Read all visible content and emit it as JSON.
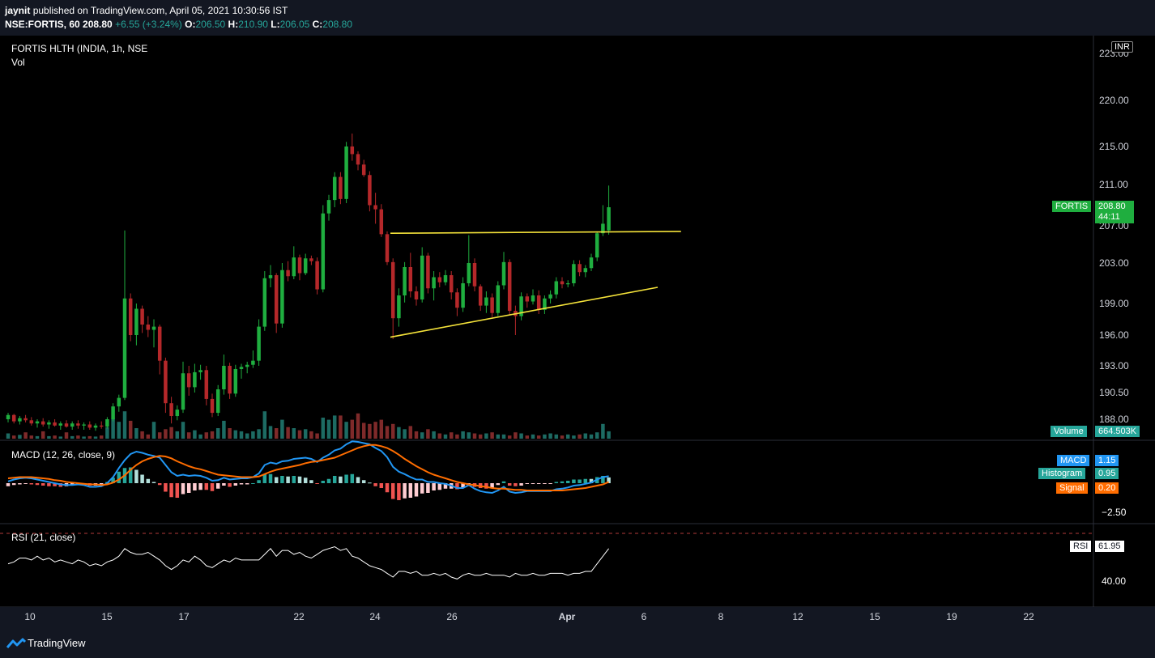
{
  "header": {
    "author": "jaynit",
    "published_text": "published on TradingView.com, April 05, 2021 10:30:56 IST",
    "symbol": "NSE:FORTIS, 60",
    "last": "208.80",
    "change": "+6.55 (+3.24%)",
    "o_label": "O:",
    "o": "206.50",
    "h_label": "H:",
    "h": "210.90",
    "l_label": "L:",
    "l": "206.05",
    "c_label": "C:",
    "c": "208.80"
  },
  "legend": {
    "title": "FORTIS HLTH (INDIA, 1h, NSE",
    "vol": "Vol"
  },
  "currency": "INR",
  "price_tag": {
    "name": "FORTIS",
    "price": "208.80",
    "countdown": "44:11"
  },
  "volume_tag": {
    "label": "Volume",
    "value": "664.503K"
  },
  "macd_panel": {
    "title": "MACD (12, 26, close, 9)",
    "macd_label": "MACD",
    "macd_value": "1.15",
    "hist_label": "Histogram",
    "hist_value": "0.95",
    "signal_label": "Signal",
    "signal_value": "0.20",
    "axis_label": "−2.50"
  },
  "rsi_panel": {
    "title": "RSI (21, close)",
    "rsi_label": "RSI",
    "rsi_value": "61.95",
    "axis_label": "40.00"
  },
  "footer": {
    "brand": "TradingView"
  },
  "colors": {
    "up": "#26a69a",
    "down": "#ef5350",
    "candle_up": "#1fae3f",
    "candle_down": "#b5282a",
    "trendline": "#f5e33a",
    "macd": "#2196f3",
    "signal": "#ff6d00",
    "rsi": "#ffffff"
  },
  "chart_data": {
    "type": "candlestick",
    "y_ticks": [
      "223.00",
      "220.00",
      "215.00",
      "211.00",
      "207.00",
      "203.00",
      "199.00",
      "196.00",
      "193.00",
      "190.50",
      "188.00"
    ],
    "y_values": [
      223.0,
      220.0,
      215.0,
      211.0,
      207.0,
      203.0,
      199.0,
      196.0,
      193.0,
      190.5,
      188.0
    ],
    "x_ticks": [
      "10",
      "15",
      "17",
      "22",
      "24",
      "26",
      "Apr",
      "6",
      "8",
      "12",
      "15",
      "19",
      "22"
    ],
    "last_price": 208.8,
    "series": [
      {
        "name": "FORTIS",
        "kind": "ohlc",
        "bars": [
          [
            188.0,
            188.6,
            187.7,
            188.4
          ],
          [
            188.4,
            188.5,
            187.6,
            187.8
          ],
          [
            187.8,
            188.3,
            187.5,
            188.1
          ],
          [
            188.1,
            188.4,
            187.7,
            187.9
          ],
          [
            187.9,
            188.2,
            187.4,
            187.6
          ],
          [
            187.6,
            188.0,
            187.2,
            187.8
          ],
          [
            187.8,
            188.1,
            187.3,
            187.5
          ],
          [
            187.5,
            187.9,
            187.1,
            187.7
          ],
          [
            187.7,
            188.0,
            187.3,
            187.4
          ],
          [
            187.4,
            187.8,
            187.0,
            187.6
          ],
          [
            187.6,
            187.9,
            187.2,
            187.3
          ],
          [
            187.3,
            187.8,
            187.0,
            187.6
          ],
          [
            187.6,
            187.9,
            187.1,
            187.4
          ],
          [
            187.4,
            187.7,
            187.0,
            187.5
          ],
          [
            187.5,
            187.8,
            187.0,
            187.2
          ],
          [
            187.2,
            187.6,
            186.9,
            187.4
          ],
          [
            187.4,
            187.8,
            187.1,
            187.3
          ],
          [
            187.3,
            188.2,
            187.1,
            188.0
          ],
          [
            188.0,
            189.5,
            187.8,
            189.2
          ],
          [
            189.2,
            190.3,
            188.7,
            190.0
          ],
          [
            190.0,
            206.5,
            189.8,
            199.5
          ],
          [
            199.5,
            200.0,
            195.4,
            196.0
          ],
          [
            196.0,
            199.0,
            195.0,
            198.5
          ],
          [
            198.5,
            198.8,
            196.2,
            197.0
          ],
          [
            197.0,
            197.8,
            195.8,
            196.5
          ],
          [
            196.5,
            197.5,
            194.8,
            196.8
          ],
          [
            196.8,
            197.0,
            192.2,
            193.5
          ],
          [
            193.5,
            193.8,
            188.6,
            189.5
          ],
          [
            189.5,
            190.1,
            187.6,
            188.3
          ],
          [
            188.3,
            189.3,
            187.9,
            188.9
          ],
          [
            188.9,
            193.4,
            188.6,
            192.3
          ],
          [
            192.3,
            193.0,
            190.2,
            191.0
          ],
          [
            191.0,
            193.2,
            190.5,
            192.4
          ],
          [
            192.4,
            193.1,
            191.7,
            192.6
          ],
          [
            192.6,
            193.0,
            189.3,
            189.9
          ],
          [
            189.9,
            190.4,
            188.2,
            188.6
          ],
          [
            188.6,
            191.2,
            188.3,
            190.8
          ],
          [
            190.8,
            194.1,
            190.3,
            193.0
          ],
          [
            193.0,
            193.3,
            189.9,
            190.4
          ],
          [
            190.4,
            193.1,
            190.1,
            192.7
          ],
          [
            192.7,
            193.2,
            191.8,
            192.9
          ],
          [
            192.9,
            193.4,
            192.3,
            193.1
          ],
          [
            193.1,
            194.5,
            192.8,
            193.5
          ],
          [
            193.5,
            197.5,
            193.0,
            196.8
          ],
          [
            196.8,
            202.2,
            196.4,
            201.5
          ],
          [
            201.5,
            202.8,
            200.6,
            201.8
          ],
          [
            201.8,
            202.0,
            196.2,
            197.1
          ],
          [
            197.1,
            203.0,
            196.7,
            202.3
          ],
          [
            202.3,
            203.2,
            201.2,
            201.7
          ],
          [
            201.7,
            204.8,
            201.4,
            203.6
          ],
          [
            203.6,
            203.9,
            201.3,
            202.0
          ],
          [
            202.0,
            204.0,
            201.8,
            203.5
          ],
          [
            203.5,
            203.8,
            202.8,
            203.2
          ],
          [
            203.2,
            203.6,
            199.9,
            200.4
          ],
          [
            200.4,
            209.0,
            200.1,
            208.2
          ],
          [
            208.2,
            210.0,
            207.5,
            209.5
          ],
          [
            209.5,
            212.3,
            208.8,
            211.8
          ],
          [
            211.8,
            212.3,
            209.1,
            209.6
          ],
          [
            209.6,
            215.5,
            209.2,
            215.0
          ],
          [
            215.0,
            216.4,
            213.5,
            214.2
          ],
          [
            214.2,
            214.5,
            212.5,
            213.1
          ],
          [
            213.1,
            213.6,
            211.8,
            212.0
          ],
          [
            212.0,
            212.4,
            208.4,
            209.0
          ],
          [
            209.0,
            210.2,
            207.2,
            208.6
          ],
          [
            208.6,
            209.1,
            205.8,
            206.1
          ],
          [
            206.1,
            206.4,
            202.8,
            203.1
          ],
          [
            203.1,
            203.5,
            195.6,
            197.6
          ],
          [
            197.6,
            200.5,
            196.8,
            199.8
          ],
          [
            199.8,
            203.1,
            199.1,
            202.6
          ],
          [
            202.6,
            204.1,
            199.6,
            200.2
          ],
          [
            200.2,
            200.7,
            198.8,
            199.4
          ],
          [
            199.4,
            204.7,
            199.1,
            203.8
          ],
          [
            203.8,
            204.1,
            200.0,
            200.5
          ],
          [
            200.5,
            202.2,
            199.3,
            201.6
          ],
          [
            201.6,
            202.1,
            200.6,
            201.1
          ],
          [
            201.1,
            202.3,
            200.8,
            201.8
          ],
          [
            201.8,
            202.2,
            199.4,
            200.1
          ],
          [
            200.1,
            200.5,
            197.8,
            198.6
          ],
          [
            198.6,
            201.6,
            198.2,
            201.0
          ],
          [
            201.0,
            206.0,
            200.7,
            203.0
          ],
          [
            203.0,
            203.5,
            200.2,
            200.7
          ],
          [
            200.7,
            200.9,
            198.3,
            198.8
          ],
          [
            198.8,
            200.2,
            198.1,
            199.6
          ],
          [
            199.6,
            200.0,
            197.7,
            198.1
          ],
          [
            198.1,
            201.2,
            197.8,
            200.8
          ],
          [
            200.8,
            204.2,
            200.4,
            203.1
          ],
          [
            203.1,
            203.4,
            197.9,
            198.3
          ],
          [
            198.3,
            198.8,
            196.0,
            197.8
          ],
          [
            197.8,
            200.1,
            197.4,
            199.7
          ],
          [
            199.7,
            200.0,
            198.6,
            199.2
          ],
          [
            199.2,
            200.4,
            198.9,
            199.8
          ],
          [
            199.8,
            200.3,
            198.0,
            198.4
          ],
          [
            198.4,
            199.8,
            198.0,
            199.5
          ],
          [
            199.5,
            200.3,
            199.0,
            199.9
          ],
          [
            199.9,
            201.6,
            199.5,
            201.2
          ],
          [
            201.2,
            201.6,
            200.5,
            200.9
          ],
          [
            200.9,
            201.3,
            200.6,
            201.0
          ],
          [
            201.0,
            203.3,
            200.7,
            202.9
          ],
          [
            202.9,
            203.3,
            201.7,
            202.1
          ],
          [
            202.1,
            202.8,
            201.6,
            202.5
          ],
          [
            202.5,
            204.0,
            202.2,
            203.6
          ],
          [
            203.6,
            206.4,
            203.2,
            206.2
          ],
          [
            206.2,
            209.0,
            205.9,
            207.2
          ],
          [
            206.5,
            210.9,
            206.05,
            208.8
          ]
        ]
      },
      {
        "name": "Vol",
        "kind": "volume",
        "values": [
          0.25,
          0.15,
          0.18,
          0.3,
          0.15,
          0.12,
          0.35,
          0.12,
          0.15,
          0.1,
          0.3,
          0.12,
          0.15,
          0.1,
          0.12,
          0.1,
          0.15,
          0.55,
          0.95,
          0.8,
          1.3,
          0.85,
          0.5,
          0.35,
          0.2,
          0.8,
          0.3,
          0.45,
          0.55,
          0.35,
          0.8,
          0.3,
          0.4,
          0.2,
          0.3,
          0.35,
          0.5,
          0.85,
          0.5,
          0.4,
          0.35,
          0.25,
          0.35,
          0.45,
          1.3,
          0.6,
          0.5,
          0.9,
          0.55,
          0.5,
          0.4,
          0.45,
          0.35,
          0.25,
          1.0,
          0.9,
          1.1,
          1.1,
          0.8,
          0.9,
          1.2,
          0.75,
          0.7,
          0.8,
          0.9,
          0.6,
          0.7,
          0.55,
          0.45,
          0.6,
          0.35,
          0.3,
          0.45,
          0.35,
          0.25,
          0.2,
          0.3,
          0.2,
          0.35,
          0.3,
          0.25,
          0.2,
          0.25,
          0.3,
          0.2,
          0.2,
          0.15,
          0.3,
          0.25,
          0.15,
          0.2,
          0.15,
          0.2,
          0.25,
          0.2,
          0.15,
          0.2,
          0.15,
          0.2,
          0.25,
          0.2,
          0.3,
          0.7,
          0.35
        ]
      },
      {
        "name": "MACD",
        "kind": "line",
        "values": [
          0.3,
          0.6,
          0.8,
          0.9,
          0.8,
          0.6,
          0.4,
          0.2,
          0.0,
          -0.2,
          -0.3,
          -0.3,
          -0.2,
          -0.3,
          -0.6,
          -0.6,
          -0.5,
          0.0,
          1.0,
          2.5,
          3.8,
          4.8,
          5.2,
          5.0,
          4.7,
          4.5,
          4.2,
          3.0,
          1.8,
          1.2,
          1.4,
          1.2,
          1.3,
          1.2,
          0.9,
          0.4,
          0.5,
          0.9,
          0.6,
          0.7,
          0.8,
          0.8,
          1.0,
          1.6,
          3.0,
          3.4,
          3.2,
          3.6,
          3.7,
          4.0,
          4.1,
          4.2,
          4.0,
          3.5,
          4.2,
          4.7,
          5.4,
          5.7,
          6.4,
          6.9,
          6.8,
          6.6,
          6.4,
          5.8,
          5.3,
          4.3,
          2.7,
          1.9,
          1.5,
          1.0,
          0.6,
          0.6,
          0.2,
          0.2,
          0.0,
          -0.1,
          -0.4,
          -0.8,
          -0.8,
          -0.3,
          -0.9,
          -1.3,
          -1.5,
          -1.6,
          -1.2,
          -0.6,
          -1.4,
          -1.6,
          -1.5,
          -1.3,
          -1.3,
          -1.3,
          -1.3,
          -1.3,
          -1.0,
          -0.9,
          -0.7,
          -0.4,
          -0.3,
          -0.1,
          0.1,
          0.6,
          1.0,
          1.15
        ]
      },
      {
        "name": "Signal",
        "kind": "line",
        "values": [
          0.8,
          0.9,
          1.0,
          1.0,
          1.0,
          0.9,
          0.8,
          0.7,
          0.5,
          0.4,
          0.2,
          0.1,
          0.0,
          -0.1,
          -0.2,
          -0.2,
          -0.3,
          -0.2,
          0.1,
          0.6,
          1.3,
          2.2,
          3.0,
          3.6,
          4.0,
          4.3,
          4.5,
          4.4,
          4.1,
          3.6,
          3.2,
          2.8,
          2.5,
          2.3,
          2.0,
          1.7,
          1.4,
          1.3,
          1.2,
          1.1,
          1.0,
          1.0,
          1.0,
          1.1,
          1.5,
          1.9,
          2.2,
          2.4,
          2.6,
          2.8,
          3.0,
          3.3,
          3.5,
          3.6,
          3.8,
          4.0,
          4.2,
          4.6,
          5.0,
          5.4,
          5.8,
          6.1,
          6.3,
          6.3,
          6.1,
          5.8,
          5.3,
          4.7,
          4.0,
          3.4,
          2.8,
          2.3,
          1.8,
          1.4,
          1.1,
          0.8,
          0.5,
          0.2,
          0.0,
          -0.2,
          -0.3,
          -0.5,
          -0.6,
          -0.8,
          -0.9,
          -0.9,
          -1.0,
          -1.1,
          -1.1,
          -1.2,
          -1.2,
          -1.2,
          -1.2,
          -1.2,
          -1.2,
          -1.2,
          -1.1,
          -1.0,
          -0.9,
          -0.8,
          -0.6,
          -0.4,
          -0.2,
          0.2
        ]
      },
      {
        "name": "RSI",
        "kind": "line",
        "values": [
          54,
          55,
          57,
          57,
          56,
          58,
          56,
          57,
          55,
          56,
          55,
          54,
          56,
          55,
          53,
          54,
          53,
          55,
          56,
          58,
          62,
          60,
          59,
          59,
          60,
          58,
          56,
          53,
          51,
          53,
          56,
          55,
          58,
          56,
          53,
          52,
          54,
          56,
          55,
          57,
          56,
          56,
          56,
          56,
          59,
          62,
          58,
          61,
          61,
          59,
          60,
          58,
          57,
          59,
          61,
          62,
          63,
          61,
          62,
          58,
          57,
          55,
          53,
          52,
          51,
          49,
          47,
          50,
          50,
          49,
          50,
          48,
          48,
          49,
          48,
          49,
          47,
          46,
          48,
          49,
          48,
          48,
          49,
          48,
          48,
          48,
          47,
          49,
          48,
          48,
          49,
          48,
          48,
          49,
          49,
          49,
          48,
          49,
          49,
          50,
          50,
          54,
          58,
          62
        ]
      }
    ],
    "trendlines": [
      {
        "name": "resistance",
        "start": [
          65,
          206.2
        ],
        "end": [
          114,
          206.4
        ]
      },
      {
        "name": "support",
        "start": [
          65,
          195.8
        ],
        "end": [
          110,
          200.6
        ]
      }
    ],
    "title": "FORTIS HLTH (INDIA, 1h, NSE"
  }
}
